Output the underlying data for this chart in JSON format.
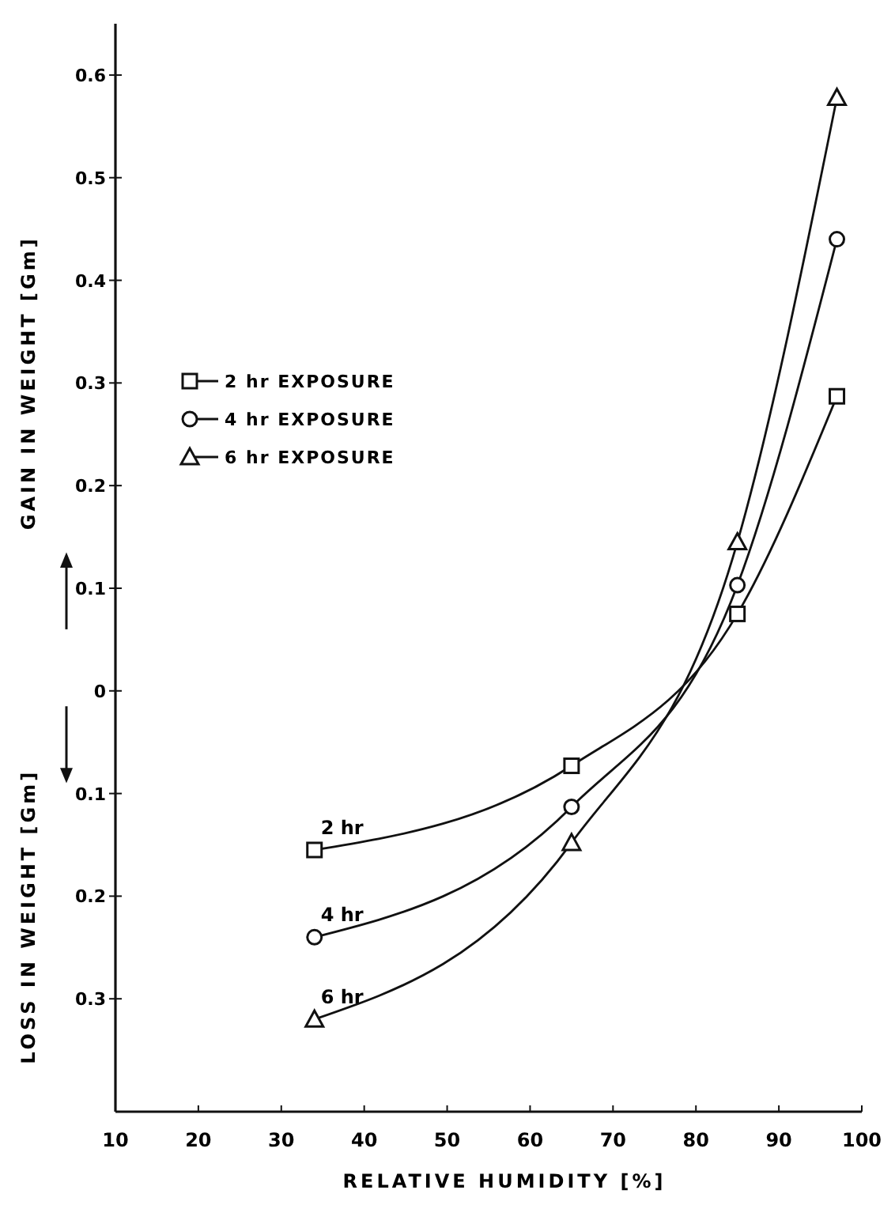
{
  "chart_data": {
    "type": "line",
    "xlabel": "RELATIVE HUMIDITY [%]",
    "ylabel": "GAIN IN WEIGHT [Gm]",
    "x": [
      34,
      65,
      85,
      97
    ],
    "series": [
      {
        "name": "2 hr EXPOSURE",
        "color": "#111111",
        "marker": "square",
        "values": [
          -0.155,
          -0.073,
          0.075,
          0.287
        ]
      },
      {
        "name": "4 hr EXPOSURE",
        "color": "#111111",
        "marker": "circle",
        "values": [
          -0.24,
          -0.113,
          0.103,
          0.44
        ]
      },
      {
        "name": "6 hr EXPOSURE",
        "color": "#111111",
        "marker": "triangle",
        "values": [
          -0.32,
          -0.148,
          0.145,
          0.578
        ]
      }
    ],
    "xlim": [
      10,
      100
    ],
    "xticks": [
      10,
      20,
      30,
      40,
      50,
      60,
      70,
      80,
      90,
      100
    ],
    "ylim": [
      -0.41,
      0.65
    ],
    "yticks": [
      {
        "value": -0.3,
        "label": "0.3"
      },
      {
        "value": -0.2,
        "label": "0.2"
      },
      {
        "value": -0.1,
        "label": "0.1"
      },
      0,
      0.1,
      0.2,
      0.3,
      0.4,
      0.5,
      0.6
    ],
    "annotations": [
      "2 hr",
      "4 hr",
      "6 hr",
      "LOSS IN WEIGHT [Gm]"
    ],
    "legend": "top left",
    "grid": false,
    "line_style": "solid"
  }
}
